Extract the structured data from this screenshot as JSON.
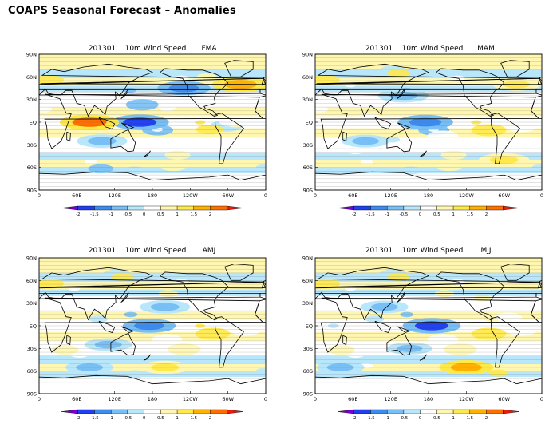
{
  "page": {
    "title": "COAPS Seasonal Forecast – Anomalies"
  },
  "colors": {
    "scale": [
      "#7a00d0",
      "#1f3ff0",
      "#3c8cf0",
      "#78bff5",
      "#b8e6fa",
      "#ffffff",
      "#fff7b0",
      "#ffe94a",
      "#ffb000",
      "#ff6f00",
      "#e81c10"
    ],
    "coast": "#000000",
    "grid": "#6a6a6a"
  },
  "chart_data": [
    {
      "type": "heatmap",
      "title_date": "201301",
      "title_variable": "10m Wind Speed",
      "title_season": "FMA",
      "x_ticks": [
        "0",
        "60E",
        "120E",
        "180",
        "120W",
        "60W",
        "0"
      ],
      "y_ticks": [
        "90N",
        "60N",
        "30N",
        "EQ",
        "30S",
        "60S",
        "90S"
      ],
      "colorbar_levels": [
        "-2",
        "-1.5",
        "-1",
        "-0.5",
        "0",
        "0.5",
        "1",
        "1.5",
        "2"
      ],
      "anomalies": [
        {
          "lon": 160,
          "lat": 0,
          "value": -1.8
        },
        {
          "lon": 80,
          "lat": 0,
          "value": 1.9
        },
        {
          "lon": 320,
          "lat": 50,
          "value": 1.7
        },
        {
          "lon": 100,
          "lat": -25,
          "value": -1.2
        },
        {
          "lon": 230,
          "lat": 45,
          "value": -1.4
        }
      ]
    },
    {
      "type": "heatmap",
      "title_date": "201301",
      "title_variable": "10m Wind Speed",
      "title_season": "MAM",
      "x_ticks": [
        "0",
        "60E",
        "120E",
        "180",
        "120W",
        "60W",
        "0"
      ],
      "y_ticks": [
        "90N",
        "60N",
        "30N",
        "EQ",
        "30S",
        "60S",
        "90S"
      ],
      "colorbar_levels": [
        "-2",
        "-1.5",
        "-1",
        "-0.5",
        "0",
        "0.5",
        "1",
        "1.5",
        "2"
      ],
      "anomalies": [
        {
          "lon": 175,
          "lat": 0,
          "value": -1.6
        },
        {
          "lon": 80,
          "lat": -25,
          "value": -1.0
        },
        {
          "lon": 140,
          "lat": 35,
          "value": -1.2
        },
        {
          "lon": 320,
          "lat": 50,
          "value": 1.0
        },
        {
          "lon": 300,
          "lat": -50,
          "value": 1.2
        }
      ]
    },
    {
      "type": "heatmap",
      "title_date": "201301",
      "title_variable": "10m Wind Speed",
      "title_season": "AMJ",
      "x_ticks": [
        "0",
        "60E",
        "120E",
        "180",
        "120W",
        "60W",
        "0"
      ],
      "y_ticks": [
        "90N",
        "60N",
        "30N",
        "EQ",
        "30S",
        "60S",
        "90S"
      ],
      "colorbar_levels": [
        "-2",
        "-1.5",
        "-1",
        "-0.5",
        "0",
        "0.5",
        "1",
        "1.5",
        "2"
      ],
      "anomalies": [
        {
          "lon": 175,
          "lat": 0,
          "value": -1.4
        },
        {
          "lon": 200,
          "lat": 25,
          "value": -1.2
        },
        {
          "lon": 110,
          "lat": -25,
          "value": -1.0
        },
        {
          "lon": 200,
          "lat": -55,
          "value": 1.1
        },
        {
          "lon": 80,
          "lat": -55,
          "value": -1.0
        }
      ]
    },
    {
      "type": "heatmap",
      "title_date": "201301",
      "title_variable": "10m Wind Speed",
      "title_season": "MJJ",
      "x_ticks": [
        "0",
        "60E",
        "120E",
        "180",
        "120W",
        "60W",
        "0"
      ],
      "y_ticks": [
        "90N",
        "60N",
        "30N",
        "EQ",
        "30S",
        "60S",
        "90S"
      ],
      "colorbar_levels": [
        "-2",
        "-1.5",
        "-1",
        "-0.5",
        "0",
        "0.5",
        "1",
        "1.5",
        "2"
      ],
      "anomalies": [
        {
          "lon": 185,
          "lat": 0,
          "value": -1.8
        },
        {
          "lon": 110,
          "lat": 25,
          "value": -1.0
        },
        {
          "lon": 240,
          "lat": -55,
          "value": 1.5
        },
        {
          "lon": 40,
          "lat": -55,
          "value": -1.0
        },
        {
          "lon": 150,
          "lat": -30,
          "value": -0.8
        }
      ]
    }
  ]
}
